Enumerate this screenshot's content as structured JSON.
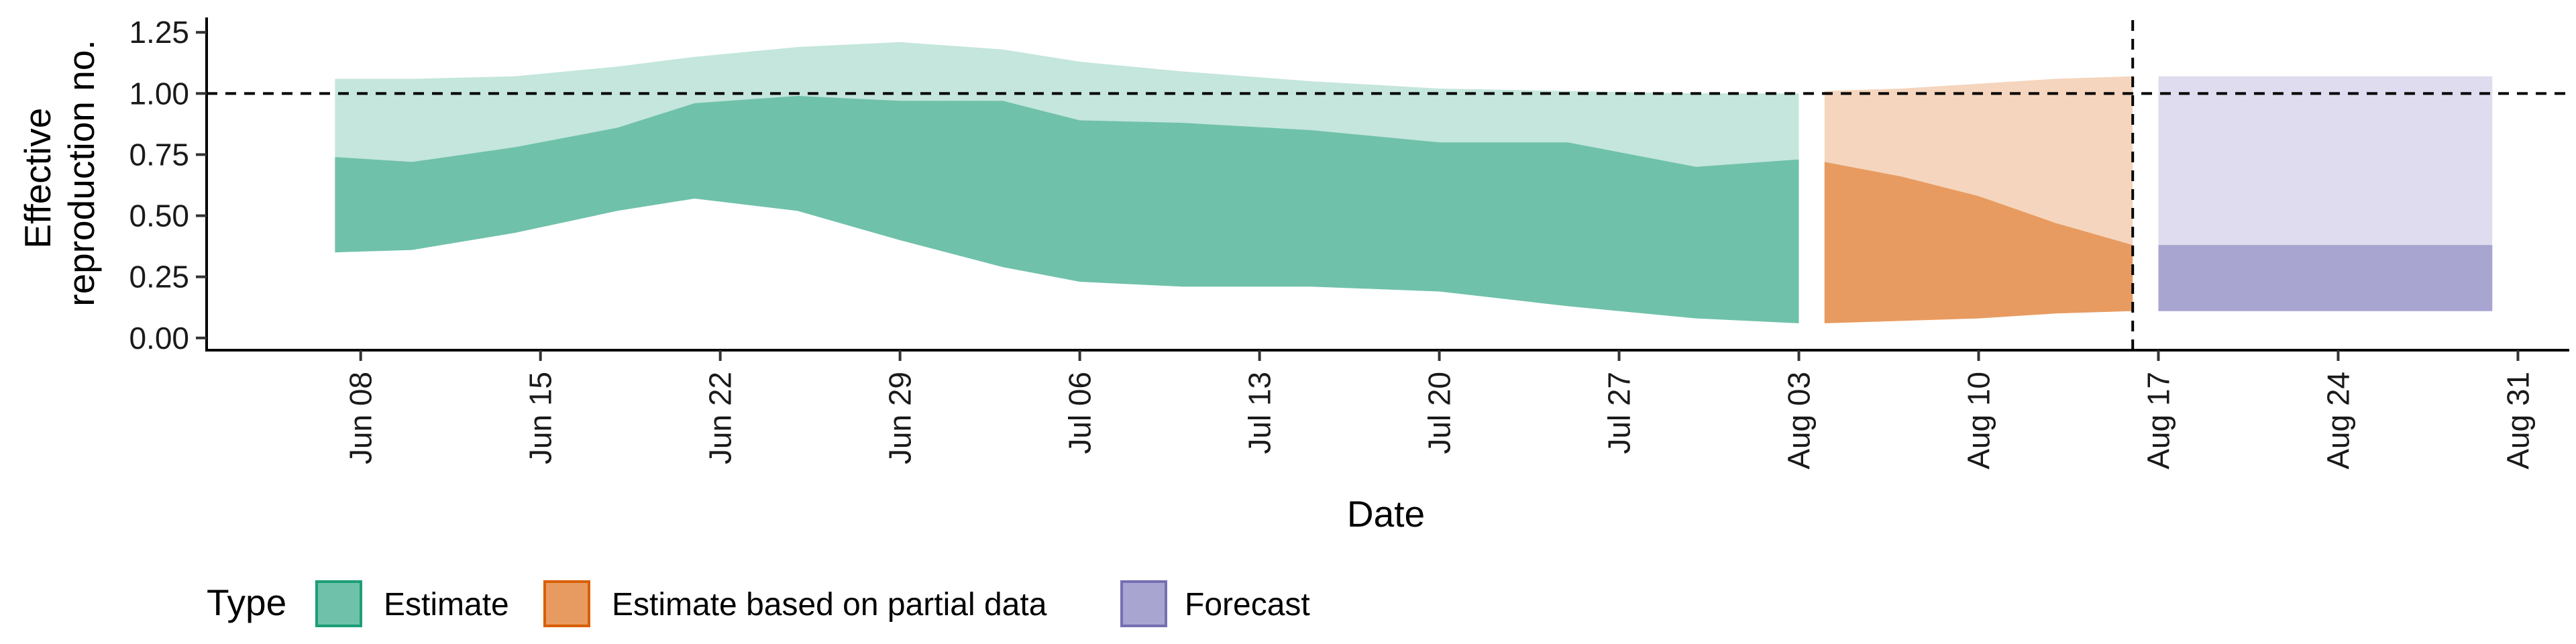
{
  "chart_data": {
    "type": "area",
    "x_axis": {
      "label": "Date",
      "type": "date",
      "range": [
        "2020-06-02",
        "2020-09-02"
      ],
      "ticks": [
        {
          "date": "2020-06-08",
          "label": "Jun 08"
        },
        {
          "date": "2020-06-15",
          "label": "Jun 15"
        },
        {
          "date": "2020-06-22",
          "label": "Jun 22"
        },
        {
          "date": "2020-06-29",
          "label": "Jun 29"
        },
        {
          "date": "2020-07-06",
          "label": "Jul 06"
        },
        {
          "date": "2020-07-13",
          "label": "Jul 13"
        },
        {
          "date": "2020-07-20",
          "label": "Jul 20"
        },
        {
          "date": "2020-07-27",
          "label": "Jul 27"
        },
        {
          "date": "2020-08-03",
          "label": "Aug 03"
        },
        {
          "date": "2020-08-10",
          "label": "Aug 10"
        },
        {
          "date": "2020-08-17",
          "label": "Aug 17"
        },
        {
          "date": "2020-08-24",
          "label": "Aug 24"
        },
        {
          "date": "2020-08-31",
          "label": "Aug 31"
        }
      ]
    },
    "y_axis": {
      "label_lines": [
        "Effective",
        "reproduction no."
      ],
      "range": [
        -0.05,
        1.3
      ],
      "ticks": [
        {
          "value": 0.0,
          "label": "0.00"
        },
        {
          "value": 0.25,
          "label": "0.25"
        },
        {
          "value": 0.5,
          "label": "0.50"
        },
        {
          "value": 0.75,
          "label": "0.75"
        },
        {
          "value": 1.0,
          "label": "1.00"
        },
        {
          "value": 1.25,
          "label": "1.25"
        }
      ]
    },
    "reference_lines": {
      "horizontal": {
        "value": 1.0,
        "style": "dashed"
      },
      "vertical": {
        "date": "2020-08-16",
        "style": "dashed"
      }
    },
    "grid": false,
    "legend": {
      "title": "Type",
      "placement": "bottom-left",
      "items": [
        {
          "label": "Estimate",
          "fill": "#70c1aa",
          "border": "#1b9e77"
        },
        {
          "label": "Estimate based on partial data",
          "fill": "#e89b60",
          "border": "#d95f02"
        },
        {
          "label": "Forecast",
          "fill": "#a9a5d1",
          "border": "#7570b3"
        }
      ]
    },
    "series": [
      {
        "name": "Estimate",
        "inner_color": "#70c1aa",
        "outer_color": "#c4e6dc",
        "points": [
          {
            "date": "2020-06-07",
            "outer_low": 0.35,
            "inner_low": 0.35,
            "inner_high": 0.74,
            "outer_high": 1.06
          },
          {
            "date": "2020-06-10",
            "outer_low": 0.36,
            "inner_low": 0.36,
            "inner_high": 0.72,
            "outer_high": 1.06
          },
          {
            "date": "2020-06-14",
            "outer_low": 0.43,
            "inner_low": 0.43,
            "inner_high": 0.78,
            "outer_high": 1.07
          },
          {
            "date": "2020-06-18",
            "outer_low": 0.52,
            "inner_low": 0.52,
            "inner_high": 0.86,
            "outer_high": 1.11
          },
          {
            "date": "2020-06-21",
            "outer_low": 0.57,
            "inner_low": 0.57,
            "inner_high": 0.96,
            "outer_high": 1.15
          },
          {
            "date": "2020-06-25",
            "outer_low": 0.52,
            "inner_low": 0.52,
            "inner_high": 0.99,
            "outer_high": 1.19
          },
          {
            "date": "2020-06-29",
            "outer_low": 0.4,
            "inner_low": 0.4,
            "inner_high": 0.97,
            "outer_high": 1.21
          },
          {
            "date": "2020-07-03",
            "outer_low": 0.29,
            "inner_low": 0.29,
            "inner_high": 0.97,
            "outer_high": 1.18
          },
          {
            "date": "2020-07-06",
            "outer_low": 0.23,
            "inner_low": 0.23,
            "inner_high": 0.89,
            "outer_high": 1.13
          },
          {
            "date": "2020-07-10",
            "outer_low": 0.21,
            "inner_low": 0.21,
            "inner_high": 0.88,
            "outer_high": 1.09
          },
          {
            "date": "2020-07-15",
            "outer_low": 0.21,
            "inner_low": 0.21,
            "inner_high": 0.85,
            "outer_high": 1.05
          },
          {
            "date": "2020-07-20",
            "outer_low": 0.19,
            "inner_low": 0.19,
            "inner_high": 0.8,
            "outer_high": 1.02
          },
          {
            "date": "2020-07-25",
            "outer_low": 0.13,
            "inner_low": 0.13,
            "inner_high": 0.8,
            "outer_high": 1.01
          },
          {
            "date": "2020-07-30",
            "outer_low": 0.08,
            "inner_low": 0.08,
            "inner_high": 0.7,
            "outer_high": 1.0
          },
          {
            "date": "2020-08-03",
            "outer_low": 0.06,
            "inner_low": 0.06,
            "inner_high": 0.73,
            "outer_high": 1.0
          }
        ]
      },
      {
        "name": "Estimate based on partial data",
        "inner_color": "#e89b60",
        "outer_color": "#f5d5bd",
        "points": [
          {
            "date": "2020-08-04",
            "outer_low": 0.06,
            "inner_low": 0.06,
            "inner_high": 0.72,
            "outer_high": 1.01
          },
          {
            "date": "2020-08-07",
            "outer_low": 0.07,
            "inner_low": 0.07,
            "inner_high": 0.66,
            "outer_high": 1.02
          },
          {
            "date": "2020-08-10",
            "outer_low": 0.08,
            "inner_low": 0.08,
            "inner_high": 0.58,
            "outer_high": 1.04
          },
          {
            "date": "2020-08-13",
            "outer_low": 0.1,
            "inner_low": 0.1,
            "inner_high": 0.47,
            "outer_high": 1.06
          },
          {
            "date": "2020-08-16",
            "outer_low": 0.11,
            "inner_low": 0.11,
            "inner_high": 0.38,
            "outer_high": 1.07
          }
        ]
      },
      {
        "name": "Forecast",
        "inner_color": "#a9a5d1",
        "outer_color": "#dedcee",
        "points": [
          {
            "date": "2020-08-17",
            "outer_low": 0.11,
            "inner_low": 0.11,
            "inner_high": 0.38,
            "outer_high": 1.07
          },
          {
            "date": "2020-08-30",
            "outer_low": 0.11,
            "inner_low": 0.11,
            "inner_high": 0.38,
            "outer_high": 1.07
          }
        ]
      }
    ]
  }
}
